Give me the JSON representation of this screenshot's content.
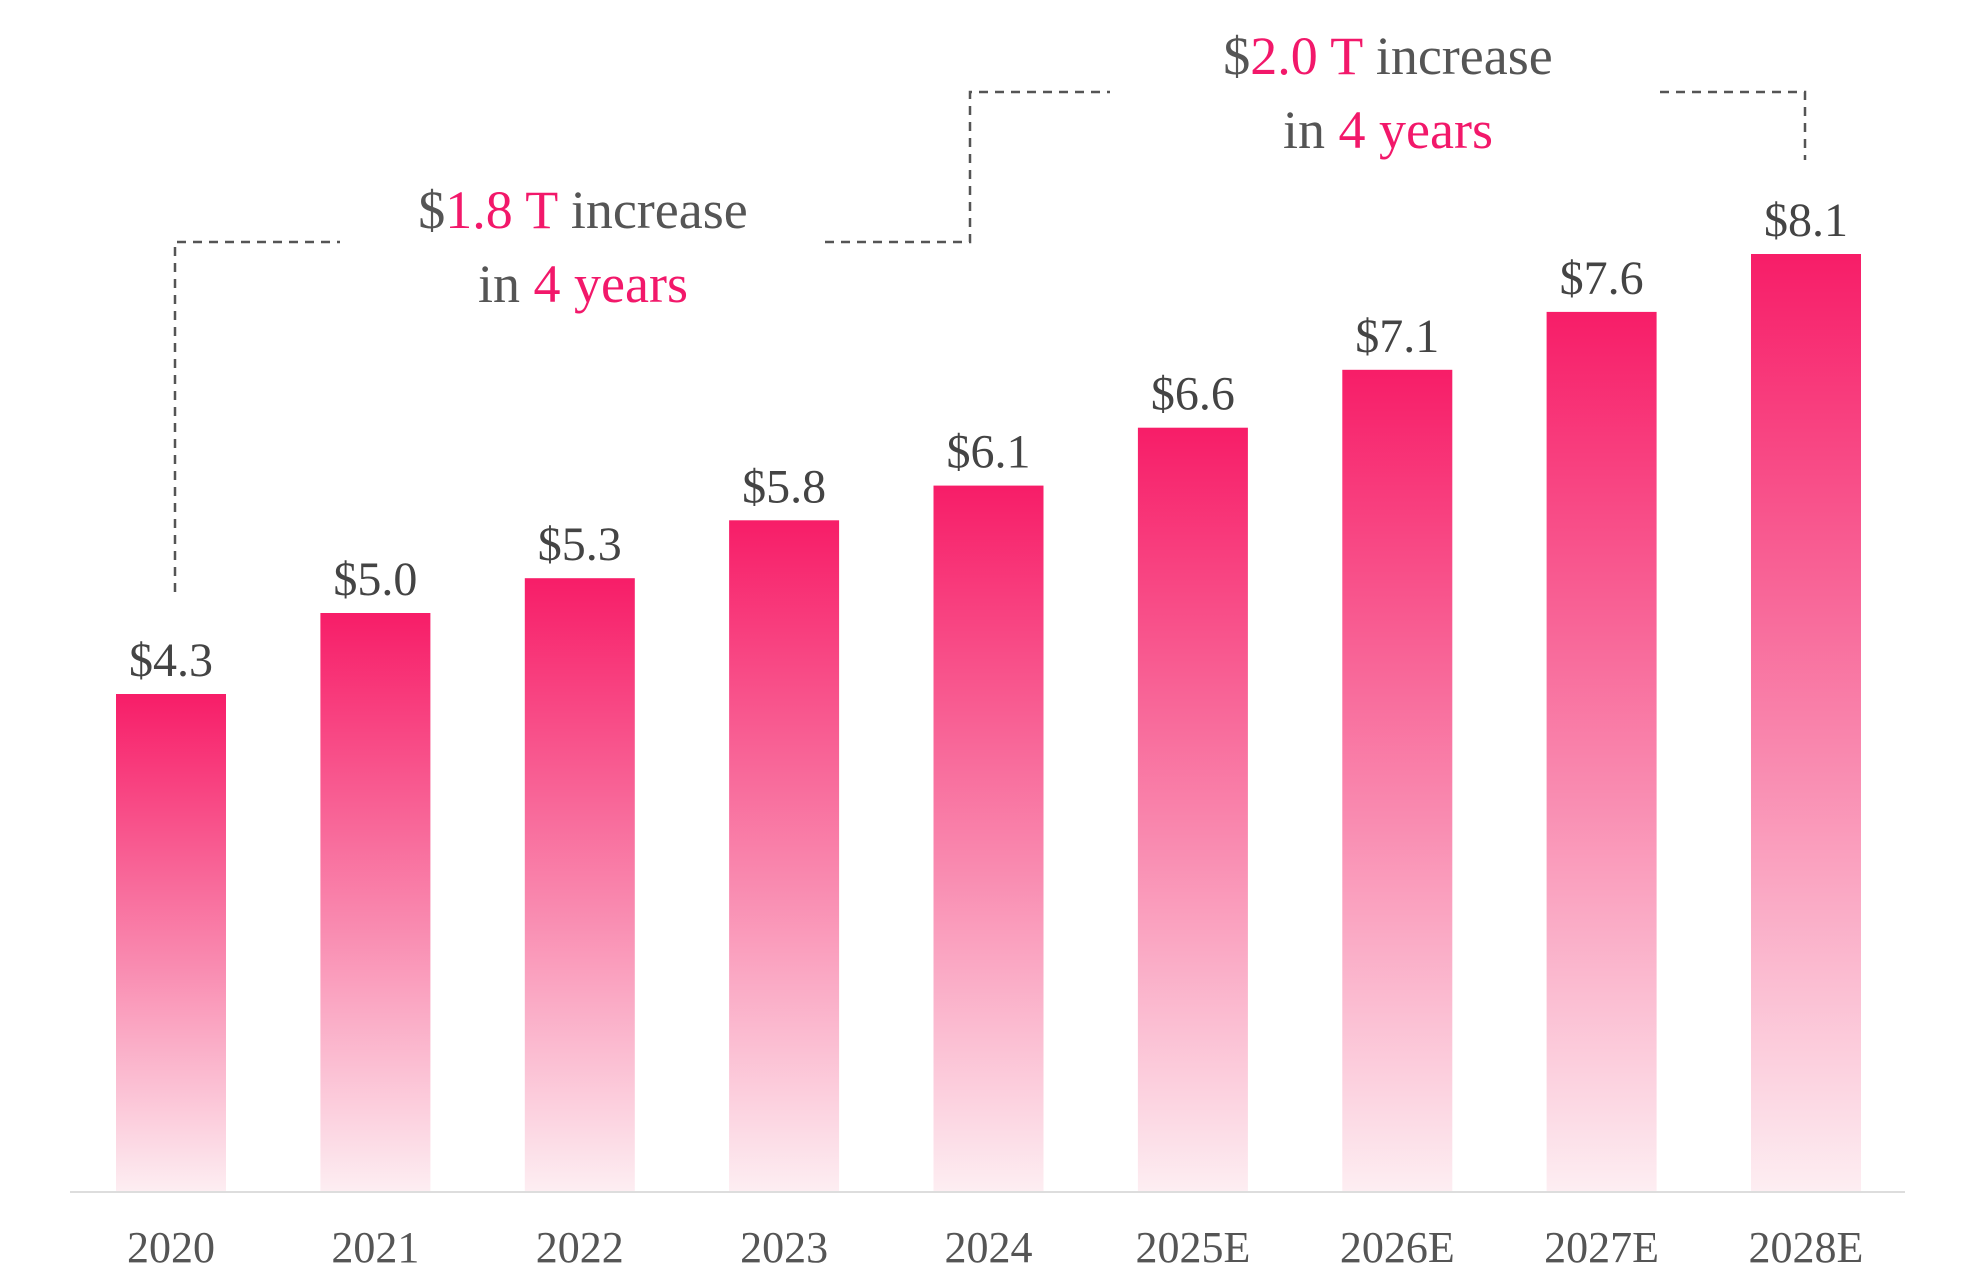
{
  "colors": {
    "bar_top": "#f71d68",
    "bar_bottom": "#fdeef2",
    "accent_text": "#f2186a",
    "text": "#555555"
  },
  "chart_data": {
    "type": "bar",
    "categories": [
      "2020",
      "2021",
      "2022",
      "2023",
      "2024",
      "2025E",
      "2026E",
      "2027E",
      "2028E"
    ],
    "values": [
      4.3,
      5.0,
      5.3,
      5.8,
      6.1,
      6.6,
      7.1,
      7.6,
      8.1
    ],
    "value_labels": [
      "$4.3",
      "$5.0",
      "$5.3",
      "$5.8",
      "$6.1",
      "$6.6",
      "$7.1",
      "$7.6",
      "$8.1"
    ],
    "ylim": [
      0,
      8.1
    ],
    "grid": false,
    "legend": "none",
    "annotations": [
      {
        "from": "2020",
        "to": "2024",
        "line1_prefix": "$",
        "line1_amount": "1.8 T",
        "line1_suffix": " increase",
        "line2_prefix": "in ",
        "line2_highlight": "4 years"
      },
      {
        "from": "2024",
        "to": "2028E",
        "line1_prefix": "$",
        "line1_amount": "2.0 T",
        "line1_suffix": " increase",
        "line2_prefix": "in ",
        "line2_highlight": "4 years"
      }
    ]
  }
}
